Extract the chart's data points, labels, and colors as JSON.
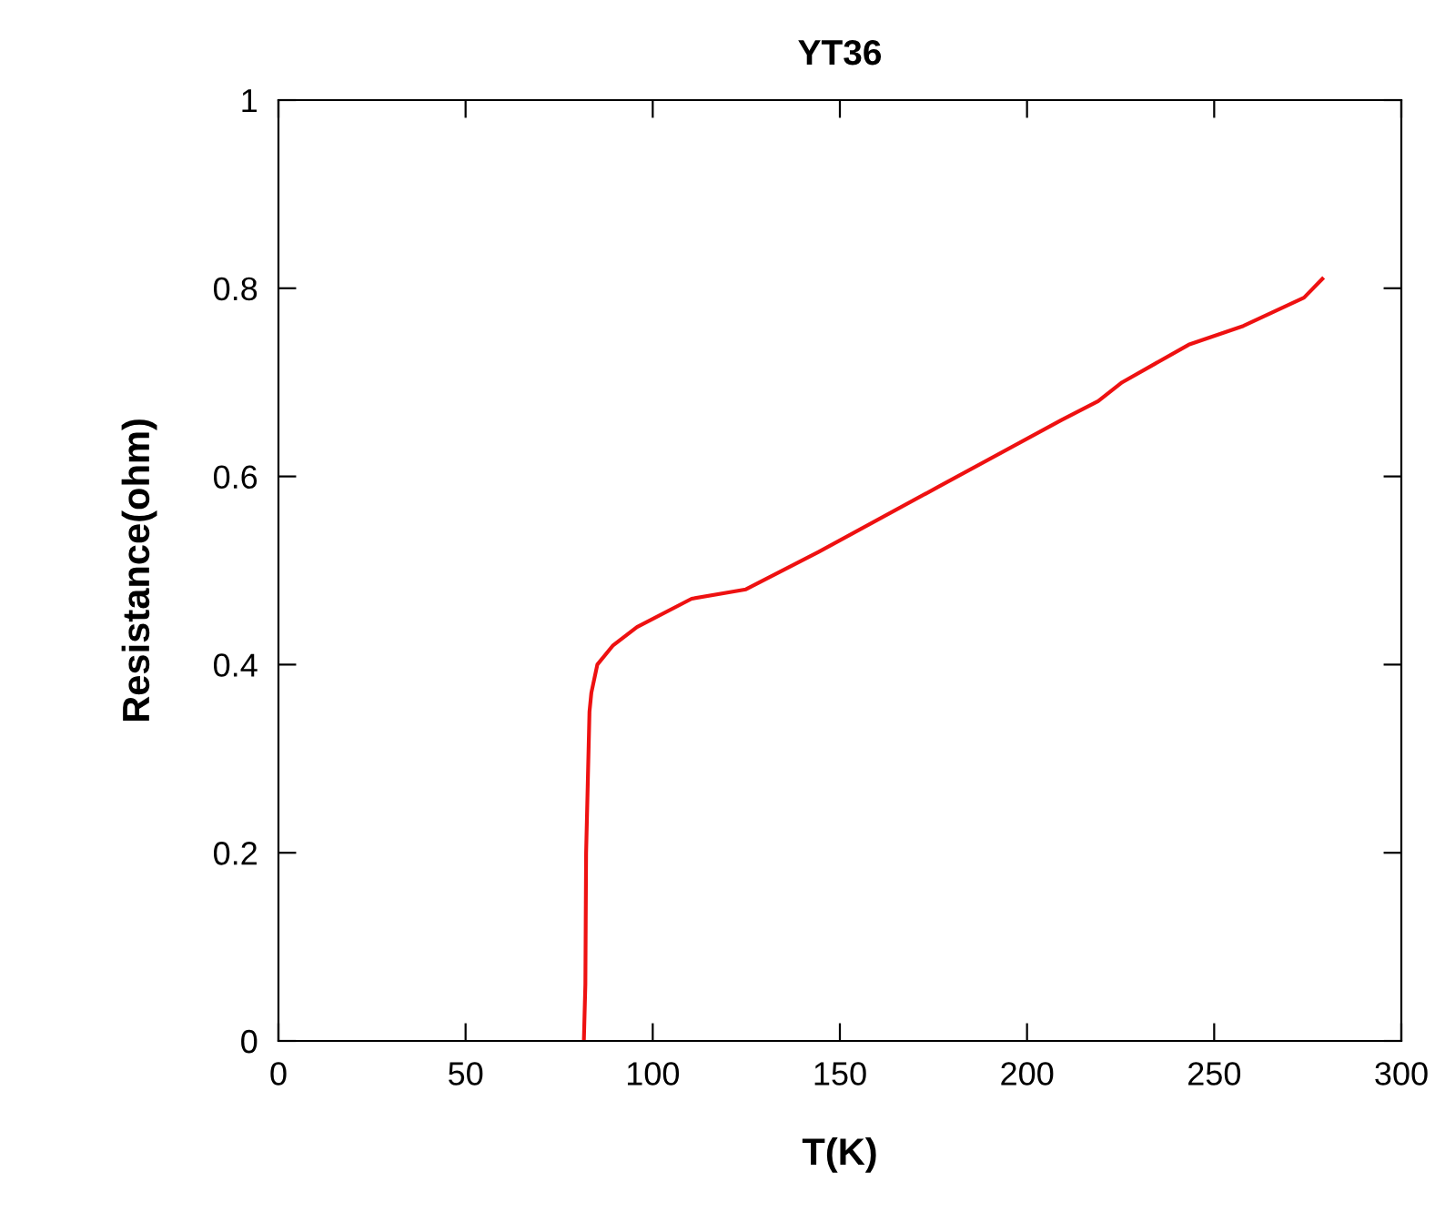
{
  "chart_data": {
    "type": "line",
    "title": "YT36",
    "xlabel": "T(K)",
    "ylabel": "Resistance(ohm)",
    "x": [
      81.6,
      82.0,
      82.2,
      83.1,
      83.6,
      85.2,
      89.3,
      95.8,
      110.4,
      124.9,
      144.4,
      176.8,
      209.2,
      219,
      225.4,
      243.2,
      257.8,
      274,
      278.9
    ],
    "series": [
      {
        "color": "#ee1111",
        "values": [
          0,
          0.06,
          0.2,
          0.35,
          0.37,
          0.4,
          0.42,
          0.44,
          0.47,
          0.48,
          0.52,
          0.59,
          0.66,
          0.68,
          0.7,
          0.74,
          0.76,
          0.79,
          0.81
        ]
      }
    ],
    "xlim": [
      0,
      300
    ],
    "xticks": [
      0,
      50,
      100,
      150,
      200,
      250,
      300
    ],
    "ylim": [
      0,
      1
    ],
    "yticks": [
      0,
      0.2,
      0.4,
      0.6,
      0.8,
      1
    ],
    "grid": false,
    "legend": false,
    "marker": "none",
    "line_style": "solid"
  }
}
